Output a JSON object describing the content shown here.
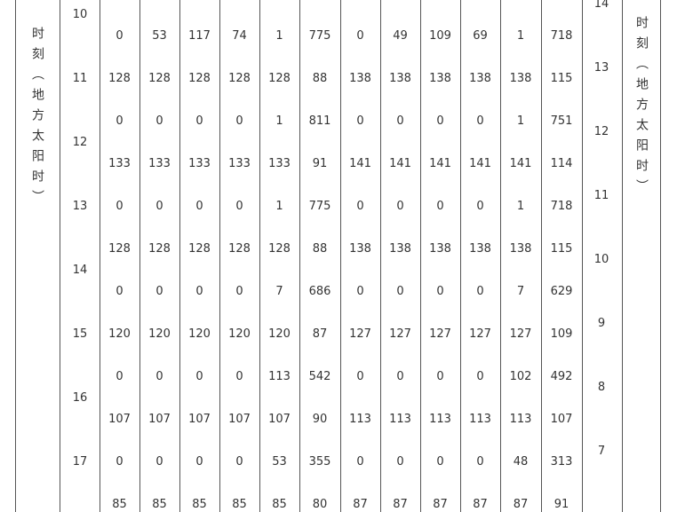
{
  "header": {
    "left_label": "时刻（地方太阳时）",
    "right_label": "时刻（地方太阳时）"
  },
  "left_hours": [
    10,
    11,
    12,
    13,
    14,
    15,
    16,
    17
  ],
  "right_hours": [
    14,
    13,
    12,
    11,
    10,
    9,
    8,
    7
  ],
  "table": {
    "rows": [
      [
        0,
        53,
        117,
        74,
        1,
        775,
        0,
        49,
        109,
        69,
        1,
        718
      ],
      [
        128,
        128,
        128,
        128,
        128,
        88,
        138,
        138,
        138,
        138,
        138,
        115
      ],
      [
        0,
        0,
        0,
        0,
        1,
        811,
        0,
        0,
        0,
        0,
        1,
        751
      ],
      [
        133,
        133,
        133,
        133,
        133,
        91,
        141,
        141,
        141,
        141,
        141,
        114
      ],
      [
        0,
        0,
        0,
        0,
        1,
        775,
        0,
        0,
        0,
        0,
        1,
        718
      ],
      [
        128,
        128,
        128,
        128,
        128,
        88,
        138,
        138,
        138,
        138,
        138,
        115
      ],
      [
        0,
        0,
        0,
        0,
        7,
        686,
        0,
        0,
        0,
        0,
        7,
        629
      ],
      [
        120,
        120,
        120,
        120,
        120,
        87,
        127,
        127,
        127,
        127,
        127,
        109
      ],
      [
        0,
        0,
        0,
        0,
        113,
        542,
        0,
        0,
        0,
        0,
        102,
        492
      ],
      [
        107,
        107,
        107,
        107,
        107,
        90,
        113,
        113,
        113,
        113,
        113,
        107
      ],
      [
        0,
        0,
        0,
        0,
        53,
        355,
        0,
        0,
        0,
        0,
        48,
        313
      ],
      [
        85,
        85,
        85,
        85,
        85,
        80,
        87,
        87,
        87,
        87,
        87,
        91
      ]
    ]
  }
}
